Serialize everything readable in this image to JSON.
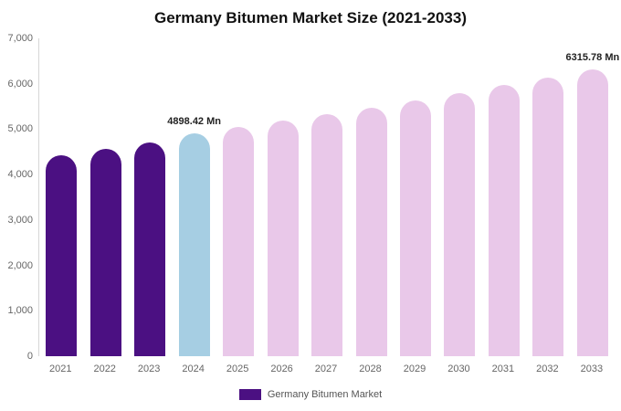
{
  "chart_data": {
    "type": "bar",
    "title": "Germany Bitumen Market Size (2021-2033)",
    "legend": "Germany Bitumen Market",
    "legend_position": "bottom",
    "grid": false,
    "xlabel": "",
    "ylabel": "",
    "ylim": [
      0,
      7000
    ],
    "yticks": [
      0,
      1000,
      2000,
      3000,
      4000,
      5000,
      6000,
      7000
    ],
    "ytick_labels": [
      "0",
      "1,000",
      "2,000",
      "3,000",
      "4,000",
      "5,000",
      "6,000",
      "7,000"
    ],
    "categories": [
      "2021",
      "2022",
      "2023",
      "2024",
      "2025",
      "2026",
      "2027",
      "2028",
      "2029",
      "2030",
      "2031",
      "2032",
      "2033"
    ],
    "values": [
      4420,
      4560,
      4700,
      4898.42,
      5040,
      5180,
      5330,
      5480,
      5640,
      5800,
      5970,
      6140,
      6315.78
    ],
    "annotations": [
      {
        "category": "2024",
        "text": "4898.42 Mn"
      },
      {
        "category": "2033",
        "text": "6315.78 Mn"
      }
    ],
    "colors": {
      "historical": "#4b1082",
      "highlight": "#a6cee3",
      "forecast": "#e9c8e9",
      "legend": "#4b1082"
    },
    "bar_colors": [
      "#4b1082",
      "#4b1082",
      "#4b1082",
      "#a6cee3",
      "#e9c8e9",
      "#e9c8e9",
      "#e9c8e9",
      "#e9c8e9",
      "#e9c8e9",
      "#e9c8e9",
      "#e9c8e9",
      "#e9c8e9",
      "#e9c8e9"
    ]
  }
}
